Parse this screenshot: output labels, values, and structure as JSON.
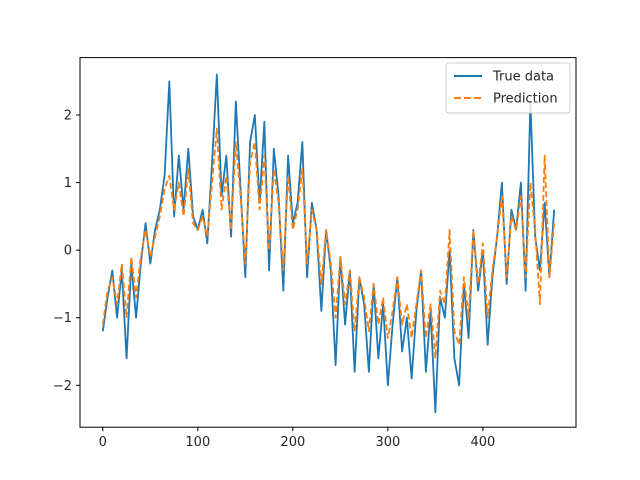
{
  "chart_data": {
    "type": "line",
    "title": "",
    "xlabel": "",
    "ylabel": "",
    "xlim": [
      -24,
      498
    ],
    "ylim": [
      -2.62,
      2.85
    ],
    "xticks": [
      0,
      100,
      200,
      300,
      400
    ],
    "yticks": [
      -2,
      -1,
      0,
      1,
      2
    ],
    "legend": {
      "placement": "top-right",
      "entries": [
        "True data",
        "Prediction"
      ]
    },
    "colors": {
      "true_data": "#1f77b4",
      "prediction": "#ff7f0e"
    },
    "series": [
      {
        "name": "True data",
        "style": "solid",
        "x": [
          0,
          5,
          10,
          15,
          20,
          25,
          30,
          35,
          40,
          45,
          50,
          55,
          60,
          65,
          70,
          75,
          80,
          85,
          90,
          95,
          100,
          105,
          110,
          115,
          120,
          125,
          130,
          135,
          140,
          145,
          150,
          155,
          160,
          165,
          170,
          175,
          180,
          185,
          190,
          195,
          200,
          205,
          210,
          215,
          220,
          225,
          230,
          235,
          240,
          245,
          250,
          255,
          260,
          265,
          270,
          275,
          280,
          285,
          290,
          295,
          300,
          305,
          310,
          315,
          320,
          325,
          330,
          335,
          340,
          345,
          350,
          355,
          360,
          365,
          370,
          375,
          380,
          385,
          390,
          395,
          400,
          405,
          410,
          415,
          420,
          425,
          430,
          435,
          440,
          445,
          450,
          455,
          460,
          465,
          470,
          475
        ],
        "y": [
          -1.2,
          -0.7,
          -0.3,
          -1.0,
          -0.3,
          -1.6,
          -0.2,
          -1.0,
          -0.2,
          0.4,
          -0.2,
          0.3,
          0.6,
          1.1,
          2.5,
          0.5,
          1.4,
          0.6,
          1.5,
          0.5,
          0.3,
          0.6,
          0.1,
          1.3,
          2.6,
          0.8,
          1.4,
          0.2,
          2.2,
          0.9,
          -0.4,
          1.6,
          2.0,
          0.7,
          1.9,
          -0.3,
          1.5,
          0.8,
          -0.6,
          1.4,
          0.4,
          0.7,
          1.6,
          -0.4,
          0.7,
          0.3,
          -0.9,
          0.3,
          -0.3,
          -1.7,
          -0.1,
          -1.1,
          -0.3,
          -1.8,
          -0.4,
          -0.8,
          -1.8,
          -0.5,
          -1.6,
          -0.8,
          -2.0,
          -1.1,
          -0.4,
          -1.5,
          -1.0,
          -1.9,
          -0.9,
          -0.3,
          -1.8,
          -0.9,
          -2.4,
          -0.7,
          -1.0,
          0.0,
          -1.6,
          -2.0,
          -0.5,
          -1.3,
          0.3,
          -0.6,
          0.0,
          -1.4,
          -0.4,
          0.2,
          1.0,
          -0.5,
          0.6,
          0.3,
          1.0,
          -0.6,
          2.2,
          0.2,
          -0.3,
          0.7,
          -0.4,
          0.6
        ]
      },
      {
        "name": "Prediction",
        "style": "dashed",
        "x": [
          0,
          5,
          10,
          15,
          20,
          25,
          30,
          35,
          40,
          45,
          50,
          55,
          60,
          65,
          70,
          75,
          80,
          85,
          90,
          95,
          100,
          105,
          110,
          115,
          120,
          125,
          130,
          135,
          140,
          145,
          150,
          155,
          160,
          165,
          170,
          175,
          180,
          185,
          190,
          195,
          200,
          205,
          210,
          215,
          220,
          225,
          230,
          235,
          240,
          245,
          250,
          255,
          260,
          265,
          270,
          275,
          280,
          285,
          290,
          295,
          300,
          305,
          310,
          315,
          320,
          325,
          330,
          335,
          340,
          345,
          350,
          355,
          360,
          365,
          370,
          375,
          380,
          385,
          390,
          395,
          400,
          405,
          410,
          415,
          420,
          425,
          430,
          435,
          440,
          445,
          450,
          455,
          460,
          465,
          470,
          475
        ],
        "y": [
          -1.1,
          -0.6,
          -0.4,
          -0.8,
          -0.2,
          -1.0,
          -0.1,
          -0.7,
          -0.1,
          0.3,
          -0.1,
          0.2,
          0.5,
          0.9,
          1.1,
          0.6,
          1.0,
          0.5,
          1.2,
          0.4,
          0.3,
          0.5,
          0.2,
          1.0,
          1.8,
          0.6,
          1.1,
          0.3,
          1.6,
          0.8,
          -0.2,
          1.3,
          1.6,
          0.6,
          1.4,
          0.0,
          1.2,
          0.7,
          -0.3,
          1.1,
          0.3,
          0.6,
          1.2,
          -0.2,
          0.6,
          0.3,
          -0.5,
          0.3,
          -0.2,
          -1.0,
          -0.1,
          -0.8,
          -0.3,
          -1.2,
          -0.4,
          -0.7,
          -1.2,
          -0.5,
          -1.1,
          -0.7,
          -1.3,
          -0.9,
          -0.4,
          -1.1,
          -0.8,
          -1.3,
          -0.8,
          -0.3,
          -1.3,
          -0.8,
          -1.6,
          -0.6,
          -0.8,
          0.3,
          -1.2,
          -1.4,
          -0.4,
          -1.0,
          0.3,
          -0.5,
          0.1,
          -1.0,
          -0.3,
          0.2,
          0.8,
          -0.4,
          0.5,
          0.3,
          0.8,
          -0.4,
          1.0,
          0.3,
          -0.8,
          1.4,
          -0.4,
          0.4
        ]
      }
    ]
  }
}
